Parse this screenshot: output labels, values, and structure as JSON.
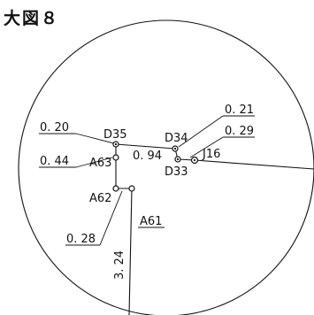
{
  "figure": {
    "title": "大図８"
  },
  "nodes": {
    "d35": "D35",
    "d34": "D34",
    "d33": "D33",
    "j16": "J16",
    "a63": "A63",
    "a62": "A62",
    "a61": "A61"
  },
  "leaders": {
    "l020": "0. 20",
    "l044": "0. 44",
    "l028": "0. 28",
    "l021": "0. 21",
    "l029": "0. 29"
  },
  "pipe_lengths": {
    "d35_d34": "0. 94",
    "a61_bottom": "3. 24"
  }
}
